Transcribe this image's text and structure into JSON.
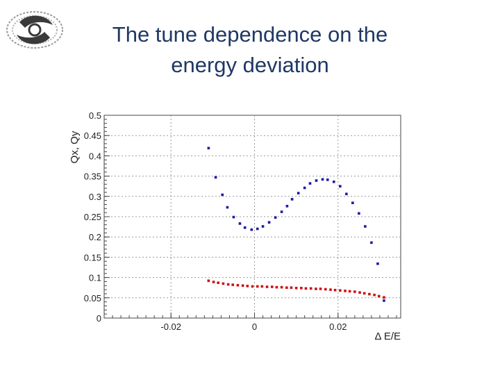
{
  "slide": {
    "title_line1": "The tune dependence on the",
    "title_line2": "energy deviation"
  },
  "colors": {
    "title": "#1f3864",
    "qx_series": "#1a1aa6",
    "qy_series": "#cc1111",
    "grid": "#9a9a9a"
  },
  "logo": {
    "icon": "ihep-swirl-logo"
  },
  "chart_data": {
    "type": "scatter",
    "title": "",
    "xlabel": "Δ E/E",
    "ylabel": "Qx, Qy",
    "xlim": [
      -0.036,
      0.035
    ],
    "ylim": [
      0,
      0.5
    ],
    "grid": true,
    "x_ticks": [
      -0.02,
      0,
      0.02
    ],
    "x_tick_labels": [
      "-0.02",
      "0",
      "0.02"
    ],
    "y_ticks": [
      0,
      0.05,
      0.1,
      0.15,
      0.2,
      0.25,
      0.3,
      0.35,
      0.4,
      0.45,
      0.5
    ],
    "y_tick_labels": [
      "0",
      "0.05",
      "0.1",
      "0.15",
      "0.2",
      "0.25",
      "0.3",
      "0.35",
      "0.4",
      "0.45",
      "0.5"
    ],
    "series": [
      {
        "color": "#1a1aa6",
        "points": [
          [
            -0.011,
            0.419
          ],
          [
            -0.0093,
            0.347
          ],
          [
            -0.0077,
            0.304
          ],
          [
            -0.0065,
            0.273
          ],
          [
            -0.005,
            0.249
          ],
          [
            -0.0035,
            0.233
          ],
          [
            -0.0023,
            0.223
          ],
          [
            -0.0007,
            0.218
          ],
          [
            0.0007,
            0.22
          ],
          [
            0.002,
            0.226
          ],
          [
            0.0035,
            0.236
          ],
          [
            0.005,
            0.248
          ],
          [
            0.0065,
            0.262
          ],
          [
            0.0078,
            0.276
          ],
          [
            0.009,
            0.293
          ],
          [
            0.0105,
            0.308
          ],
          [
            0.012,
            0.321
          ],
          [
            0.0133,
            0.332
          ],
          [
            0.0148,
            0.339
          ],
          [
            0.0163,
            0.342
          ],
          [
            0.0175,
            0.341
          ],
          [
            0.019,
            0.336
          ],
          [
            0.0205,
            0.325
          ],
          [
            0.022,
            0.306
          ],
          [
            0.0235,
            0.284
          ],
          [
            0.025,
            0.258
          ],
          [
            0.0265,
            0.226
          ],
          [
            0.028,
            0.186
          ],
          [
            0.0295,
            0.134
          ],
          [
            0.031,
            0.043
          ]
        ]
      },
      {
        "color": "#cc1111",
        "points": [
          [
            -0.011,
            0.092
          ],
          [
            -0.0098,
            0.089
          ],
          [
            -0.0087,
            0.087
          ],
          [
            -0.0075,
            0.085
          ],
          [
            -0.0063,
            0.083
          ],
          [
            -0.0052,
            0.082
          ],
          [
            -0.004,
            0.081
          ],
          [
            -0.0028,
            0.08
          ],
          [
            -0.0017,
            0.079
          ],
          [
            -0.0005,
            0.078
          ],
          [
            0.0007,
            0.078
          ],
          [
            0.0018,
            0.078
          ],
          [
            0.003,
            0.077
          ],
          [
            0.0042,
            0.077
          ],
          [
            0.0053,
            0.076
          ],
          [
            0.0065,
            0.076
          ],
          [
            0.0077,
            0.075
          ],
          [
            0.0088,
            0.075
          ],
          [
            0.01,
            0.074
          ],
          [
            0.0112,
            0.074
          ],
          [
            0.0123,
            0.073
          ],
          [
            0.0135,
            0.073
          ],
          [
            0.0147,
            0.072
          ],
          [
            0.0158,
            0.072
          ],
          [
            0.017,
            0.071
          ],
          [
            0.0182,
            0.07
          ],
          [
            0.0193,
            0.069
          ],
          [
            0.0205,
            0.068
          ],
          [
            0.0217,
            0.067
          ],
          [
            0.0228,
            0.066
          ],
          [
            0.024,
            0.065
          ],
          [
            0.0252,
            0.063
          ],
          [
            0.0263,
            0.061
          ],
          [
            0.0275,
            0.059
          ],
          [
            0.0287,
            0.057
          ],
          [
            0.0298,
            0.054
          ],
          [
            0.031,
            0.051
          ]
        ]
      }
    ]
  }
}
